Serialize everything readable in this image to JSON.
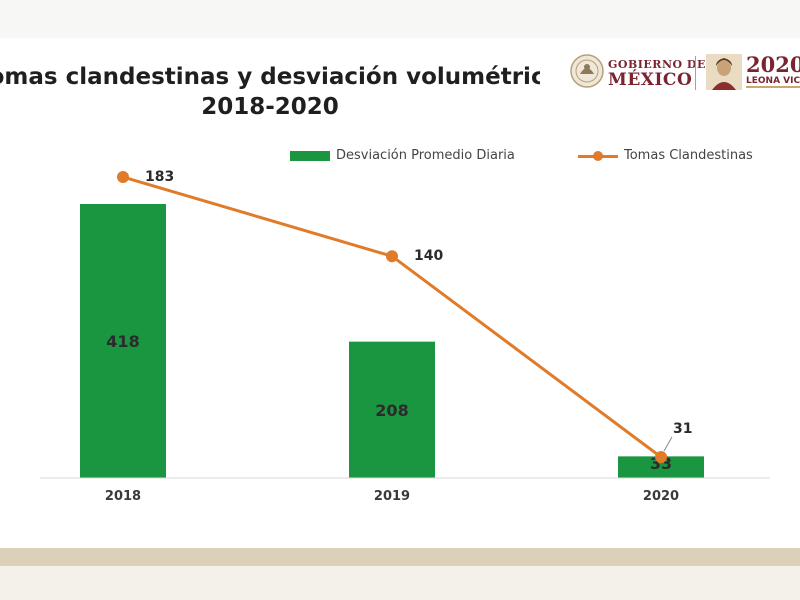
{
  "title": {
    "line1": "Tomas clandestinas y desviación volumétrica",
    "line2": "2018-2020"
  },
  "logos": {
    "gobierno_line1": "GOBIERNO DE",
    "gobierno_line2": "MÉXICO",
    "year": "2020",
    "leona": "LEONA VICARIO"
  },
  "colors": {
    "bar": "#1a9641",
    "line": "#e07b2a",
    "brand": "#7a2430"
  },
  "chart_data": {
    "type": "bar",
    "categories": [
      "2018",
      "2019",
      "2020"
    ],
    "series": [
      {
        "name": "Desviación Promedio Diaria",
        "type": "bar",
        "values": [
          418,
          208,
          33
        ]
      },
      {
        "name": "Tomas Clandestinas",
        "type": "line",
        "values": [
          183,
          140,
          31
        ]
      }
    ],
    "legend_position": "top-right",
    "grid": false
  }
}
